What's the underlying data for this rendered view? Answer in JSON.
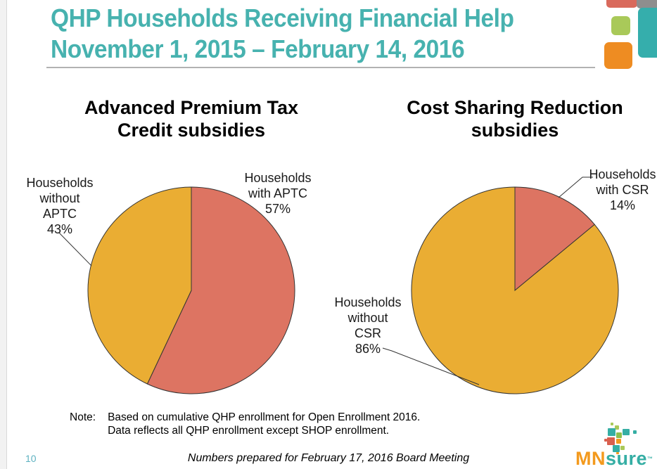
{
  "header": {
    "title": "QHP Households Receiving Financial Help\nNovember 1, 2015 – February 14, 2016"
  },
  "chart_data": [
    {
      "type": "pie",
      "title": "Advanced Premium Tax\nCredit subsidies",
      "start_angle_deg": 0,
      "direction": "clockwise",
      "outline_color": "#333333",
      "slices": [
        {
          "name": "Households with APTC",
          "value": 57,
          "color": "#DD7462",
          "callout": "Households\nwith APTC\n57%"
        },
        {
          "name": "Households without APTC",
          "value": 43,
          "color": "#EAAD33",
          "callout": "Households\nwithout\nAPTC\n43%"
        }
      ]
    },
    {
      "type": "pie",
      "title": "Cost Sharing Reduction\nsubsidies",
      "start_angle_deg": 0,
      "direction": "clockwise",
      "outline_color": "#333333",
      "slices": [
        {
          "name": "Households with CSR",
          "value": 14,
          "color": "#DD7462",
          "callout": "Households\nwith CSR\n14%"
        },
        {
          "name": "Households without CSR",
          "value": 86,
          "color": "#EAAD33",
          "callout": "Households\nwithout\nCSR\n86%"
        }
      ]
    }
  ],
  "note": {
    "label": "Note:",
    "line1": "Based on cumulative QHP enrollment for Open Enrollment 2016.",
    "line2": "Data reflects all QHP enrollment except SHOP enrollment."
  },
  "footer": {
    "page_number": "10",
    "text": "Numbers prepared for February 17, 2016 Board Meeting"
  },
  "logo": {
    "mn": "MN",
    "sure": "sure",
    "tm": "™"
  },
  "colors": {
    "title_teal": "#47B2AF",
    "slice_red": "#DD7462",
    "slice_yellow": "#EAAD33",
    "outline": "#333333",
    "corner_red": "#D96A5C",
    "corner_gray": "#8E8E8E",
    "corner_teal": "#35AEAC",
    "corner_green": "#A9C959",
    "corner_orange": "#EE8C22",
    "logo_orange": "#F39A1E",
    "logo_teal": "#35AEA4",
    "logo_red": "#D9604F",
    "logo_green": "#A9C959",
    "logo_dark_green": "#8FBF4D",
    "page_number_teal": "#5FB2C1"
  }
}
